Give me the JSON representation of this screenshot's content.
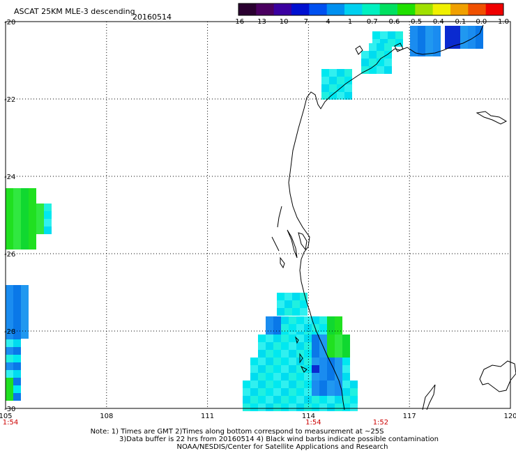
{
  "header": {
    "title": "ASCAT 25KM MLE-3 descending",
    "date": "20160514"
  },
  "colorbar": {
    "colors": [
      "#2a0030",
      "#4a0060",
      "#3a00a0",
      "#0010d0",
      "#0050f0",
      "#0090f0",
      "#00d0f0",
      "#00f0c0",
      "#00e060",
      "#20e000",
      "#a0e000",
      "#f0f000",
      "#f0a000",
      "#f05000",
      "#f00000"
    ],
    "labels": [
      "-16",
      "-13",
      "-10",
      "-7",
      "-4",
      "-1",
      "-0.7",
      "-0.6",
      "-0.5",
      "-0.4",
      "-0.1",
      "0.0",
      "1.0"
    ]
  },
  "axes": {
    "x_ticks": [
      "105",
      "108",
      "111",
      "114",
      "117",
      "120"
    ],
    "y_ticks": [
      "-20",
      "-22",
      "-24",
      "-26",
      "-28",
      "-30"
    ],
    "lon_range": [
      105,
      120
    ],
    "lat_range": [
      -30,
      -20
    ],
    "grid": true
  },
  "times": [
    {
      "label": "1:54",
      "lon": 105
    },
    {
      "label": "1:54",
      "lon": 114
    },
    {
      "label": "1:52",
      "lon": 116
    }
  ],
  "footer": {
    "line1": "Note: 1) Times are GMT 2)Times along bottom correspond to measurement at ~25S",
    "line2": "3)Data buffer is 22 hrs from 20160514 4) Black wind barbs indicate possible contamination",
    "line3": "NOAA/NESDIS/Center for Satellite Applications and Research"
  }
}
